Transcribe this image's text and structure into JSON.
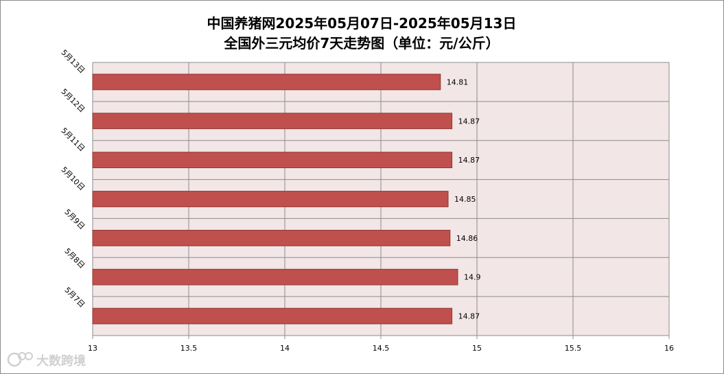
{
  "chart_data": {
    "type": "bar",
    "orientation": "horizontal",
    "title": [
      "中国养猪网2025年05月07日-2025年05月13日",
      "全国外三元均价7天走势图（单位：元/公斤）"
    ],
    "categories": [
      "5月13日",
      "5月12日",
      "5月11日",
      "5月10日",
      "5月9日",
      "5月8日",
      "5月7日"
    ],
    "values": [
      14.81,
      14.87,
      14.87,
      14.85,
      14.86,
      14.9,
      14.87
    ],
    "value_labels": [
      "14.81",
      "14.87",
      "14.87",
      "14.85",
      "14.86",
      "14.9",
      "14.87"
    ],
    "xlim": [
      13,
      16
    ],
    "x_ticks": [
      13,
      13.5,
      14,
      14.5,
      15,
      15.5,
      16
    ],
    "x_tick_labels": [
      "13",
      "13.5",
      "14",
      "14.5",
      "15",
      "15.5",
      "16"
    ],
    "xlabel": "",
    "ylabel": "",
    "grid": true,
    "legend": "none",
    "colors": {
      "bar": "#c0504d",
      "bar_stroke": "#8c3836",
      "plot_bg": "#f2e6e6",
      "grid": "#8c8c8c"
    }
  },
  "watermark": {
    "text": "大数跨境",
    "icon": "brand-logo-icon"
  }
}
